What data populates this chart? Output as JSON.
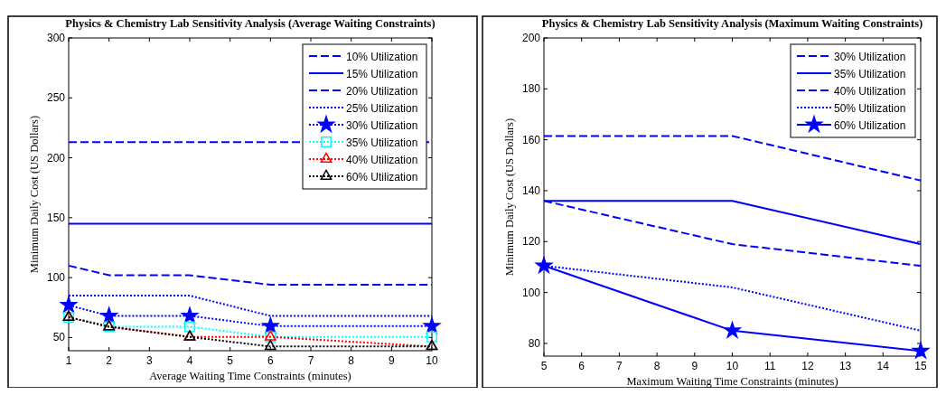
{
  "chart_data": [
    {
      "type": "line",
      "title": "Physics & Chemistry Lab Sensitivity Analysis (Average Waiting Constraints)",
      "xlabel": "Average Waiting Time Constraints (minutes)",
      "ylabel": "Minimum Daily Cost (US Dollars)",
      "x": [
        1,
        2,
        4,
        6,
        10
      ],
      "xlim": [
        1,
        10
      ],
      "xticks": [
        1,
        2,
        3,
        4,
        5,
        6,
        7,
        8,
        9,
        10
      ],
      "ylim": [
        39,
        300
      ],
      "yticks": [
        50,
        100,
        150,
        200,
        250,
        300
      ],
      "grid": false,
      "legend": "top right",
      "series": [
        {
          "name": "10% Utilization",
          "color": "#0000ff",
          "line_style": "dashed",
          "marker": "none",
          "values": [
            213,
            213,
            213,
            213,
            213
          ]
        },
        {
          "name": "15% Utilization",
          "color": "#0000ff",
          "line_style": "solid",
          "marker": "none",
          "values": [
            145,
            145,
            145,
            145,
            145
          ]
        },
        {
          "name": "20% Utilization",
          "color": "#0000ff",
          "line_style": "dashed",
          "marker": "none",
          "values": [
            110,
            102,
            102,
            94,
            94
          ]
        },
        {
          "name": "25% Utilization",
          "color": "#0000ff",
          "line_style": "dotted",
          "marker": "none",
          "values": [
            85,
            85,
            85,
            68,
            68
          ]
        },
        {
          "name": "30% Utilization",
          "color": "#0000ff",
          "line_style": "dotted",
          "marker": "star",
          "values": [
            77,
            68,
            68,
            59.5,
            59.5
          ]
        },
        {
          "name": "35% Utilization",
          "color": "#00ffff",
          "line_style": "dotted",
          "marker": "square",
          "values": [
            67,
            59,
            59,
            50.5,
            50.5
          ]
        },
        {
          "name": "40% Utilization",
          "color": "#ff0000",
          "line_style": "dotted",
          "marker": "triangle",
          "values": [
            67,
            59,
            50.5,
            50.5,
            42.5
          ]
        },
        {
          "name": "60% Utilization",
          "color": "#000000",
          "line_style": "dotted",
          "marker": "triangle",
          "values": [
            67,
            59,
            50.5,
            42.5,
            42.5
          ]
        }
      ]
    },
    {
      "type": "line",
      "title": "Physics & Chemistry Lab Sensitivity Analysis (Maximum Waiting Constraints)",
      "xlabel": "Maximum Waiting Time Constraints (minutes)",
      "ylabel": "Minimum Daily Cost (US Dollars)",
      "x": [
        5,
        10,
        15
      ],
      "xlim": [
        5,
        15
      ],
      "xticks": [
        5,
        6,
        7,
        8,
        9,
        10,
        11,
        12,
        13,
        14,
        15
      ],
      "ylim": [
        75,
        200
      ],
      "yticks": [
        80,
        100,
        120,
        140,
        160,
        180,
        200
      ],
      "grid": false,
      "legend": "top right",
      "series": [
        {
          "name": "30% Utilization",
          "color": "#0000ff",
          "line_style": "dashed",
          "marker": "none",
          "values": [
            161.5,
            161.5,
            144
          ]
        },
        {
          "name": "35% Utilization",
          "color": "#0000ff",
          "line_style": "solid",
          "marker": "none",
          "values": [
            136,
            136,
            119
          ]
        },
        {
          "name": "40% Utilization",
          "color": "#0000ff",
          "line_style": "dashed",
          "marker": "none",
          "values": [
            136,
            119,
            110.5
          ]
        },
        {
          "name": "50% Utilization",
          "color": "#0000ff",
          "line_style": "dotted",
          "marker": "none",
          "values": [
            110.5,
            102,
            85
          ]
        },
        {
          "name": "60% Utilization",
          "color": "#0000ff",
          "line_style": "solid",
          "marker": "star",
          "values": [
            110.5,
            85,
            77
          ]
        }
      ]
    }
  ]
}
